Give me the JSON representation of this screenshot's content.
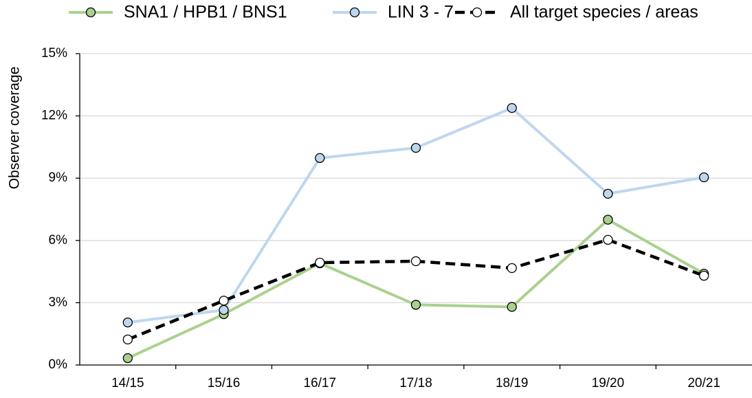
{
  "chart_data": {
    "type": "line",
    "y_label": "Observer coverage",
    "categories": [
      "14/15",
      "15/16",
      "16/17",
      "17/18",
      "18/19",
      "19/20",
      "20/21"
    ],
    "series": [
      {
        "name": "SNA1 / HPB1 / BNS1",
        "color": "#a9d18e",
        "marker_fill": "#a9d18e",
        "dashed": false,
        "values": [
          0.33,
          2.45,
          4.9,
          2.9,
          2.8,
          7.0,
          4.4
        ]
      },
      {
        "name": "LIN 3 - 7",
        "color": "#bdd7ee",
        "marker_fill": "#bdd7ee",
        "dashed": false,
        "values": [
          2.05,
          2.65,
          9.97,
          10.46,
          12.38,
          8.25,
          9.04
        ]
      },
      {
        "name": "All target species / areas",
        "color": "#000000",
        "marker_fill": "#ffffff",
        "dashed": true,
        "values": [
          1.23,
          3.1,
          4.93,
          5.0,
          4.67,
          6.03,
          4.3
        ]
      }
    ],
    "ylim": [
      0,
      15
    ],
    "yticks": [
      {
        "value": 0,
        "label": "0%"
      },
      {
        "value": 3,
        "label": "3%"
      },
      {
        "value": 6,
        "label": "6%"
      },
      {
        "value": 9,
        "label": "9%"
      },
      {
        "value": 12,
        "label": "12%"
      },
      {
        "value": 15,
        "label": "15%"
      }
    ],
    "grid": true,
    "legend": "top"
  }
}
